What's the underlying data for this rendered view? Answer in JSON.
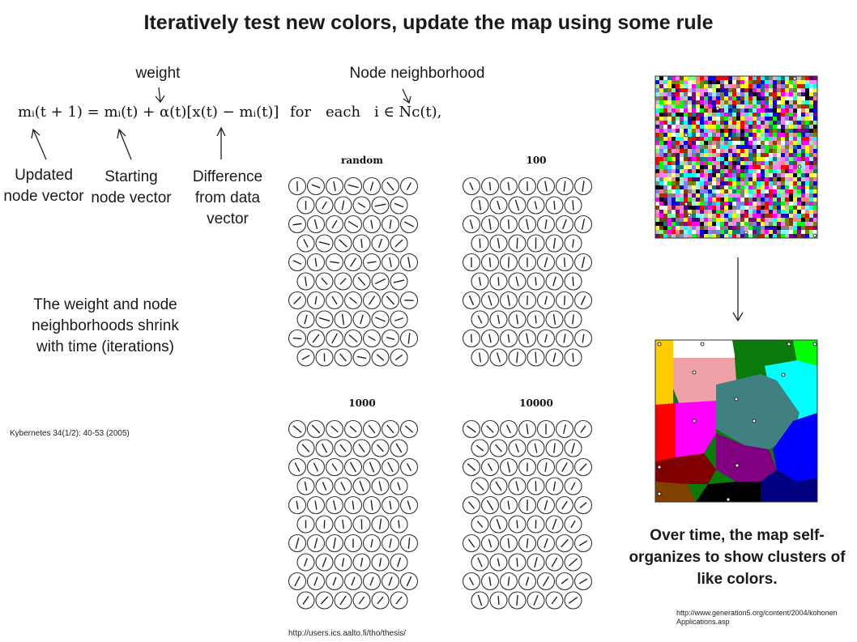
{
  "title": "Iteratively test new colors, update the map using some rule",
  "annotations": {
    "weight": "weight",
    "node_neighborhood": "Node neighborhood",
    "updated": "Updated node vector",
    "starting": "Starting node vector",
    "difference": "Difference from data vector"
  },
  "equation": {
    "lhs": "mᵢ(t + 1) = mᵢ(t) + α(t)[x(t) − mᵢ(t)]",
    "for": "for",
    "each": "each",
    "set": "i ∈ Nᴄ(t),"
  },
  "shrink_note": "The weight and node neighborhoods shrink with time (iterations)",
  "citation": "Kybernetes 34(1/2): 40-53 (2005)",
  "panels": {
    "p1": "random",
    "p2": "100",
    "p3": "1000",
    "p4": "10000"
  },
  "source_center": "http://users.ics.aalto.fi/tho/thesis/",
  "caption_right": "Over time, the map self-organizes to show clusters of like colors.",
  "source_right": "http://www.generation5.org/content/2004/kohonenApplications.asp",
  "colors": {
    "green": "#0a7a0a",
    "cyan": "#00ffff",
    "teal": "#408080",
    "pink": "#f0a0a8",
    "magenta": "#ff00ff",
    "red": "#ff0000",
    "blue": "#0000ff",
    "purple": "#800080",
    "dark_red": "#800000",
    "yellow": "#ffcc00",
    "navy": "#000080",
    "black": "#000000",
    "brown": "#804000",
    "lime": "#00ff00",
    "white": "#ffffff"
  }
}
